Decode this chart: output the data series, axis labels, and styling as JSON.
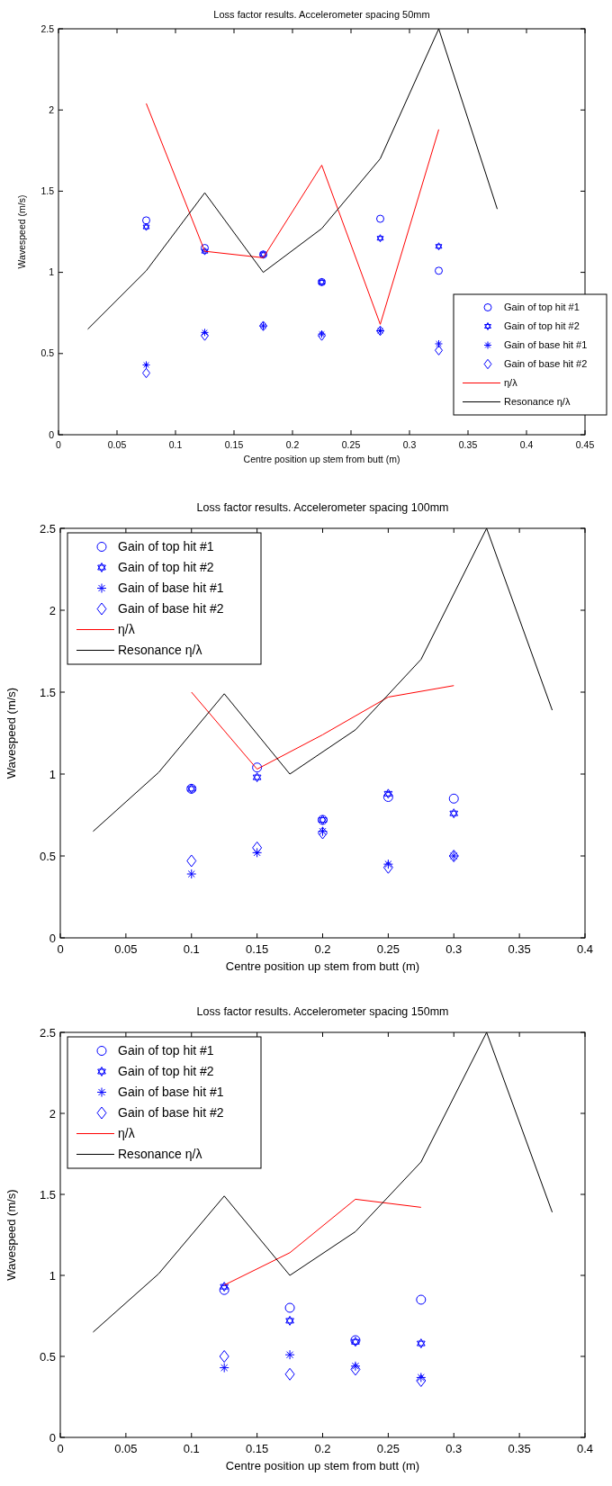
{
  "chart_data": [
    {
      "type": "scatter",
      "title": "Loss factor results. Accelerometer spacing 50mm",
      "xlabel": "Centre position up stem from butt (m)",
      "ylabel": "Wavespeed (m/s)",
      "xlim": [
        0,
        0.45
      ],
      "xticks": [
        0,
        0.05,
        0.1,
        0.15,
        0.2,
        0.25,
        0.3,
        0.35,
        0.4,
        0.45
      ],
      "ylim": [
        0,
        2.5
      ],
      "yticks": [
        0,
        0.5,
        1,
        1.5,
        2,
        2.5
      ],
      "grid": false,
      "legend": "bottom right",
      "series": [
        {
          "name": "Gain of top hit #1",
          "color": "#0000ff",
          "marker": "circle",
          "x": [
            0.075,
            0.125,
            0.175,
            0.225,
            0.275,
            0.325
          ],
          "values": [
            1.32,
            1.15,
            1.11,
            0.94,
            1.33,
            1.01
          ]
        },
        {
          "name": "Gain of top hit #2",
          "color": "#0000ff",
          "marker": "star",
          "x": [
            0.075,
            0.125,
            0.175,
            0.225,
            0.275,
            0.325
          ],
          "values": [
            1.28,
            1.13,
            1.11,
            0.94,
            1.21,
            1.16
          ]
        },
        {
          "name": "Gain of base hit #1",
          "color": "#0000ff",
          "marker": "cross",
          "x": [
            0.075,
            0.125,
            0.175,
            0.225,
            0.275,
            0.325
          ],
          "values": [
            0.43,
            0.63,
            0.67,
            0.62,
            0.64,
            0.56
          ]
        },
        {
          "name": "Gain of base hit #2",
          "color": "#0000ff",
          "marker": "diamond",
          "x": [
            0.075,
            0.125,
            0.175,
            0.225,
            0.275,
            0.325
          ],
          "values": [
            0.38,
            0.61,
            0.67,
            0.61,
            0.64,
            0.52
          ]
        },
        {
          "name": "η/λ",
          "type": "line",
          "color": "#ff0000",
          "marker": "none",
          "line_style": "solid",
          "x": [
            0.075,
            0.125,
            0.175,
            0.225,
            0.275,
            0.325
          ],
          "values": [
            2.04,
            1.13,
            1.09,
            1.66,
            0.68,
            1.88
          ]
        },
        {
          "name": "Resonance η/λ",
          "type": "line",
          "color": "#000000",
          "marker": "none",
          "line_style": "solid",
          "x": [
            0.025,
            0.075,
            0.125,
            0.175,
            0.225,
            0.275,
            0.325,
            0.375
          ],
          "values": [
            0.65,
            1.01,
            1.49,
            1.0,
            1.27,
            1.7,
            2.5,
            1.39
          ]
        }
      ]
    },
    {
      "type": "scatter",
      "title": "Loss factor results. Accelerometer spacing 100mm",
      "xlabel": "Centre position up stem from butt (m)",
      "ylabel": "Wavespeed (m/s)",
      "xlim": [
        0,
        0.4
      ],
      "xticks": [
        0,
        0.05,
        0.1,
        0.15,
        0.2,
        0.25,
        0.3,
        0.35,
        0.4
      ],
      "ylim": [
        0,
        2.5
      ],
      "yticks": [
        0,
        0.5,
        1,
        1.5,
        2,
        2.5
      ],
      "grid": false,
      "legend": "top left",
      "series": [
        {
          "name": "Gain of top hit #1",
          "color": "#0000ff",
          "marker": "circle",
          "x": [
            0.1,
            0.15,
            0.2,
            0.25,
            0.3
          ],
          "values": [
            0.91,
            1.04,
            0.72,
            0.86,
            0.85
          ]
        },
        {
          "name": "Gain of top hit #2",
          "color": "#0000ff",
          "marker": "star",
          "x": [
            0.1,
            0.15,
            0.2,
            0.25,
            0.3
          ],
          "values": [
            0.91,
            0.98,
            0.72,
            0.88,
            0.76
          ]
        },
        {
          "name": "Gain of base hit #1",
          "color": "#0000ff",
          "marker": "cross",
          "x": [
            0.1,
            0.15,
            0.2,
            0.25,
            0.3
          ],
          "values": [
            0.39,
            0.52,
            0.65,
            0.45,
            0.5
          ]
        },
        {
          "name": "Gain of base hit #2",
          "color": "#0000ff",
          "marker": "diamond",
          "x": [
            0.1,
            0.15,
            0.2,
            0.25,
            0.3
          ],
          "values": [
            0.47,
            0.55,
            0.64,
            0.43,
            0.5
          ]
        },
        {
          "name": "η/λ",
          "type": "line",
          "color": "#ff0000",
          "marker": "none",
          "line_style": "solid",
          "x": [
            0.1,
            0.15,
            0.2,
            0.25,
            0.3
          ],
          "values": [
            1.5,
            1.03,
            1.24,
            1.47,
            1.54
          ]
        },
        {
          "name": "Resonance η/λ",
          "type": "line",
          "color": "#000000",
          "marker": "none",
          "line_style": "solid",
          "x": [
            0.025,
            0.075,
            0.125,
            0.175,
            0.225,
            0.275,
            0.325,
            0.375
          ],
          "values": [
            0.65,
            1.01,
            1.49,
            1.0,
            1.27,
            1.7,
            2.5,
            1.39
          ]
        }
      ]
    },
    {
      "type": "scatter",
      "title": "Loss factor results. Accelerometer spacing 150mm",
      "xlabel": "Centre position up stem from butt (m)",
      "ylabel": "Wavespeed (m/s)",
      "xlim": [
        0,
        0.4
      ],
      "xticks": [
        0,
        0.05,
        0.1,
        0.15,
        0.2,
        0.25,
        0.3,
        0.35,
        0.4
      ],
      "ylim": [
        0,
        2.5
      ],
      "yticks": [
        0,
        0.5,
        1,
        1.5,
        2,
        2.5
      ],
      "grid": false,
      "legend": "top left",
      "series": [
        {
          "name": "Gain of top hit #1",
          "color": "#0000ff",
          "marker": "circle",
          "x": [
            0.125,
            0.175,
            0.225,
            0.275
          ],
          "values": [
            0.91,
            0.8,
            0.6,
            0.85
          ]
        },
        {
          "name": "Gain of top hit #2",
          "color": "#0000ff",
          "marker": "star",
          "x": [
            0.125,
            0.175,
            0.225,
            0.275
          ],
          "values": [
            0.93,
            0.72,
            0.59,
            0.58
          ]
        },
        {
          "name": "Gain of base hit #1",
          "color": "#0000ff",
          "marker": "cross",
          "x": [
            0.125,
            0.175,
            0.225,
            0.275
          ],
          "values": [
            0.43,
            0.51,
            0.44,
            0.37
          ]
        },
        {
          "name": "Gain of base hit #2",
          "color": "#0000ff",
          "marker": "diamond",
          "x": [
            0.125,
            0.175,
            0.225,
            0.275
          ],
          "values": [
            0.5,
            0.39,
            0.42,
            0.35
          ]
        },
        {
          "name": "η/λ",
          "type": "line",
          "color": "#ff0000",
          "marker": "none",
          "line_style": "solid",
          "x": [
            0.125,
            0.175,
            0.225,
            0.275
          ],
          "values": [
            0.94,
            1.14,
            1.47,
            1.42
          ]
        },
        {
          "name": "Resonance η/λ",
          "type": "line",
          "color": "#000000",
          "marker": "none",
          "line_style": "solid",
          "x": [
            0.025,
            0.075,
            0.125,
            0.175,
            0.225,
            0.275,
            0.325,
            0.375
          ],
          "values": [
            0.65,
            1.01,
            1.49,
            1.0,
            1.27,
            1.7,
            2.5,
            1.39
          ]
        }
      ]
    }
  ]
}
